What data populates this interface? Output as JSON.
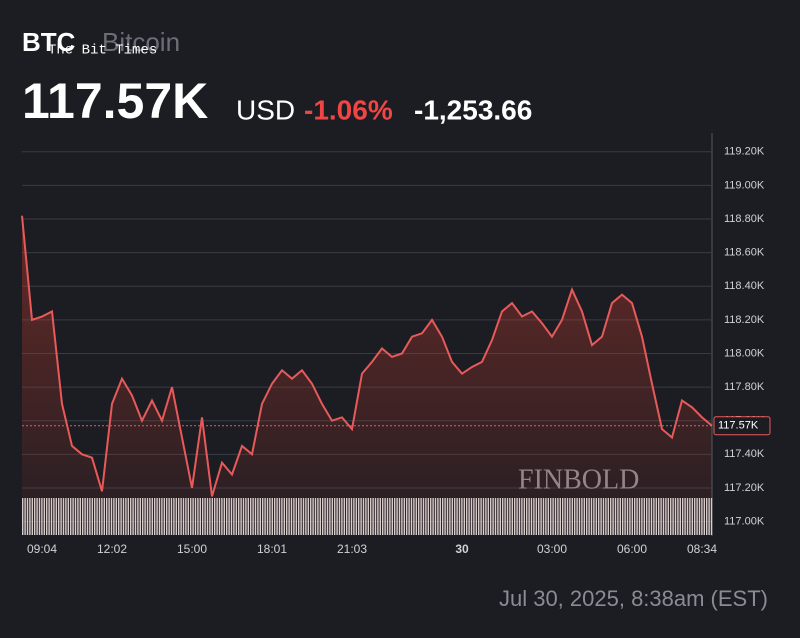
{
  "header": {
    "symbol": "BTC",
    "name": "Bitcoin",
    "watermark": "The Bit Times",
    "price": "117.57K",
    "currency": "USD",
    "change_percent": "-1.06%",
    "change": "-1,253.66"
  },
  "footer": {
    "timestamp": "Jul 30, 2025, 8:38am (EST)",
    "brand": "FINBOLD"
  },
  "chart_data": {
    "type": "line",
    "categories": [
      null,
      null,
      "09:04",
      null,
      null,
      null,
      null,
      null,
      null,
      "12:02",
      null,
      null,
      null,
      null,
      null,
      null,
      null,
      "15:00",
      null,
      null,
      null,
      null,
      null,
      null,
      null,
      "18:01",
      null,
      null,
      null,
      null,
      null,
      null,
      null,
      "21:03",
      null,
      null,
      null,
      null,
      null,
      null,
      null,
      null,
      null,
      null,
      "30",
      null,
      null,
      null,
      null,
      null,
      null,
      null,
      null,
      "03:00",
      null,
      null,
      null,
      null,
      null,
      null,
      null,
      "06:00",
      null,
      null,
      null,
      null,
      null,
      null,
      "08:34",
      null
    ],
    "series": [
      {
        "name": "BTC",
        "color": "#e85a5a",
        "values": [
          118.82,
          118.2,
          118.22,
          118.25,
          117.7,
          117.45,
          117.4,
          117.38,
          117.18,
          117.7,
          117.85,
          117.75,
          117.6,
          117.72,
          117.6,
          117.8,
          117.5,
          117.2,
          117.62,
          117.15,
          117.35,
          117.28,
          117.45,
          117.4,
          117.7,
          117.82,
          117.9,
          117.85,
          117.9,
          117.82,
          117.7,
          117.6,
          117.62,
          117.55,
          117.88,
          117.95,
          118.03,
          117.98,
          118.0,
          118.1,
          118.12,
          118.2,
          118.1,
          117.95,
          117.88,
          117.92,
          117.95,
          118.08,
          118.25,
          118.3,
          118.22,
          118.25,
          118.18,
          118.1,
          118.2,
          118.38,
          118.25,
          118.05,
          118.1,
          118.3,
          118.35,
          118.3,
          118.1,
          117.82,
          117.55,
          117.5,
          117.72,
          117.68,
          117.62,
          117.57
        ]
      }
    ],
    "last_price": {
      "value": 117.57,
      "label": "117.57K"
    },
    "ylim": [
      116.92,
      119.3
    ],
    "yticks": [
      {
        "value": 117.0,
        "label": "117.00K"
      },
      {
        "value": 117.2,
        "label": "117.20K"
      },
      {
        "value": 117.4,
        "label": "117.40K"
      },
      {
        "value": 117.6,
        "label": "117.60K"
      },
      {
        "value": 117.8,
        "label": "117.80K"
      },
      {
        "value": 118.0,
        "label": "118.00K"
      },
      {
        "value": 118.2,
        "label": "118.20K"
      },
      {
        "value": 118.4,
        "label": "118.40K"
      },
      {
        "value": 118.6,
        "label": "118.60K"
      },
      {
        "value": 118.8,
        "label": "118.80K"
      },
      {
        "value": 119.0,
        "label": "119.00K"
      },
      {
        "value": 119.2,
        "label": "119.20K"
      }
    ],
    "grid": true
  }
}
